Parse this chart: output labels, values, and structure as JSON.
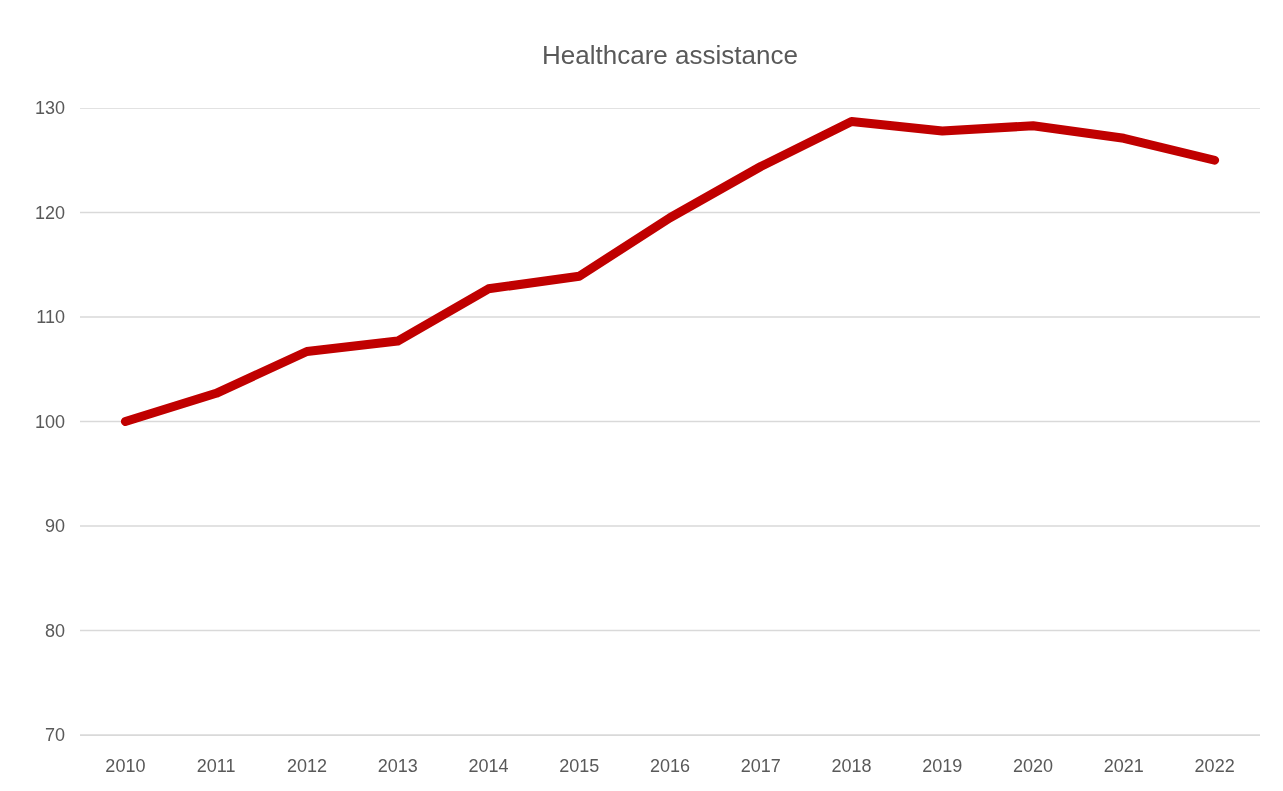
{
  "chart_data": {
    "type": "line",
    "title": "Healthcare assistance",
    "categories": [
      "2010",
      "2011",
      "2012",
      "2013",
      "2014",
      "2015",
      "2016",
      "2017",
      "2018",
      "2019",
      "2020",
      "2021",
      "2022"
    ],
    "series": [
      {
        "color": "#c00000",
        "values": [
          100.0,
          102.7,
          106.7,
          107.7,
          112.7,
          113.9,
          119.5,
          124.4,
          128.7,
          127.8,
          128.3,
          127.1,
          125.0
        ]
      }
    ],
    "ylim": [
      70,
      130
    ],
    "yticks": [
      70,
      80,
      90,
      100,
      110,
      120,
      130
    ],
    "grid": "y",
    "marker": "none",
    "line_style": "solid"
  }
}
